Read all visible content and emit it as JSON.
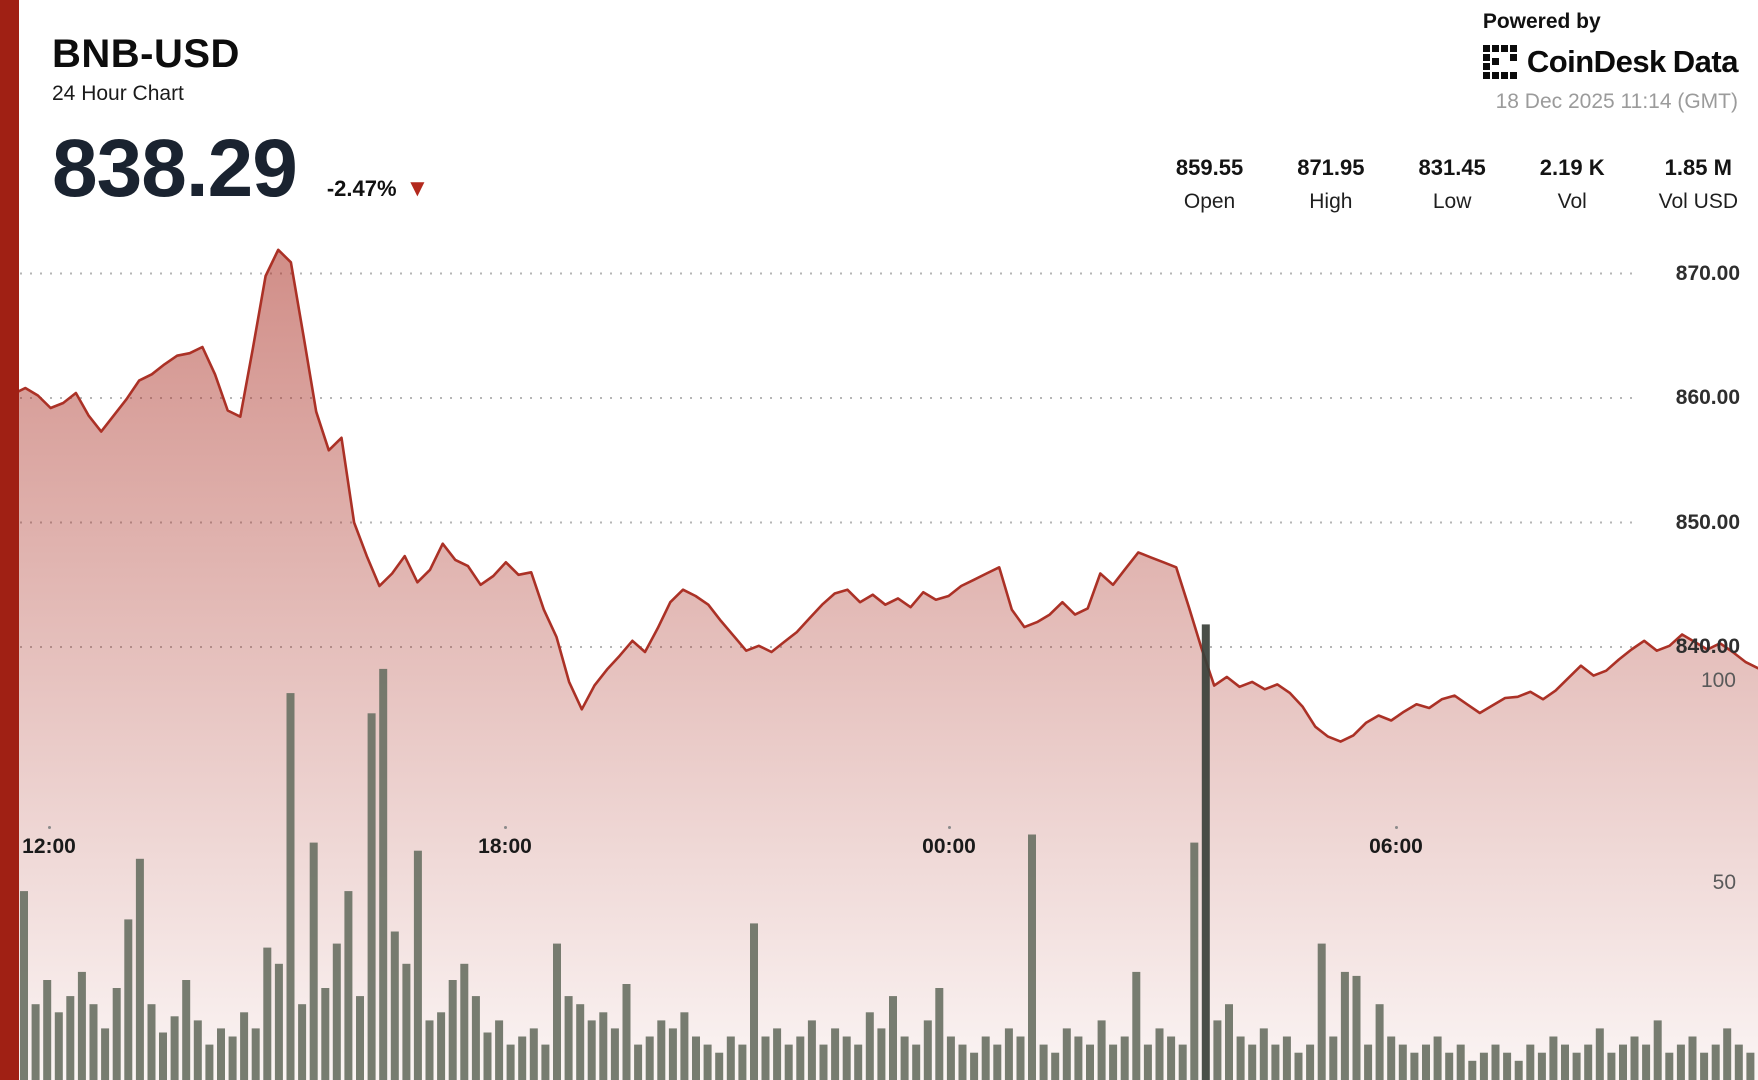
{
  "header": {
    "symbol": "BNB-USD",
    "subtitle": "24 Hour Chart",
    "price": "838.29",
    "change_pct": "-2.47%",
    "change_direction": "down",
    "powered_by": "Powered by",
    "brand_part1": "CoinDesk",
    "brand_part2": "Data",
    "timestamp": "18 Dec 2025 11:14 (GMT)"
  },
  "stats": [
    {
      "value": "859.55",
      "label": "Open"
    },
    {
      "value": "871.95",
      "label": "High"
    },
    {
      "value": "831.45",
      "label": "Low"
    },
    {
      "value": "2.19 K",
      "label": "Vol"
    },
    {
      "value": "1.85 M",
      "label": "Vol USD"
    }
  ],
  "colors": {
    "line": "#ab3126",
    "stripe": "#a02014",
    "volume": "#6b7265",
    "volume_dark": "#3a403a",
    "grid": "#b5b5b5",
    "triangle": "#b3291d"
  },
  "chart_data": {
    "type": "area",
    "title": "BNB-USD 24 Hour Chart",
    "last_price": 838.29,
    "change_pct": -2.47,
    "open": 859.55,
    "high": 871.95,
    "low": 831.45,
    "volume": "2.19 K",
    "volume_usd": "1.85 M",
    "timezone": "GMT",
    "x_axis": {
      "ticks": [
        {
          "label": "12:00",
          "pos": 0.028
        },
        {
          "label": "18:00",
          "pos": 0.287
        },
        {
          "label": "00:00",
          "pos": 0.54
        },
        {
          "label": "06:00",
          "pos": 0.794
        }
      ]
    },
    "price_axis": {
      "side": "right",
      "range": [
        828,
        874
      ],
      "ticks": [
        {
          "label": "870.00",
          "value": 870
        },
        {
          "label": "860.00",
          "value": 860
        },
        {
          "label": "850.00",
          "value": 850
        },
        {
          "label": "840.00",
          "value": 840
        }
      ]
    },
    "volume_axis": {
      "side": "right",
      "range": [
        0,
        115
      ],
      "ticks": [
        {
          "label": "100",
          "value": 100
        },
        {
          "label": "50",
          "value": 50
        }
      ]
    },
    "price_series": {
      "name": "BNB-USD price",
      "color": "#ab3126",
      "values": [
        859.5,
        860.3,
        860.8,
        860.2,
        859.2,
        859.6,
        860.4,
        858.6,
        857.3,
        858.6,
        859.9,
        861.4,
        861.9,
        862.7,
        863.4,
        863.6,
        864.1,
        861.9,
        859.0,
        858.5,
        864.0,
        869.8,
        871.9,
        870.9,
        865.0,
        858.9,
        855.8,
        856.8,
        850.0,
        847.3,
        844.9,
        845.9,
        847.3,
        845.2,
        846.2,
        848.3,
        847.0,
        846.5,
        845.0,
        845.7,
        846.8,
        845.8,
        846.0,
        843.0,
        840.8,
        837.2,
        835.0,
        836.9,
        838.2,
        839.3,
        840.5,
        839.6,
        841.5,
        843.6,
        844.6,
        844.1,
        843.4,
        842.1,
        840.9,
        839.7,
        840.1,
        839.6,
        840.4,
        841.2,
        842.3,
        843.4,
        844.3,
        844.6,
        843.6,
        844.2,
        843.4,
        843.9,
        843.2,
        844.4,
        843.8,
        844.1,
        844.9,
        845.4,
        845.9,
        846.4,
        843.0,
        841.6,
        842.0,
        842.6,
        843.6,
        842.6,
        843.1,
        845.9,
        845.0,
        846.3,
        847.6,
        847.2,
        846.8,
        846.4,
        843.2,
        839.9,
        836.9,
        837.6,
        836.8,
        837.2,
        836.6,
        837.0,
        836.3,
        835.2,
        833.6,
        832.8,
        832.4,
        832.9,
        833.9,
        834.5,
        834.1,
        834.8,
        835.4,
        835.1,
        835.8,
        836.1,
        835.4,
        834.7,
        835.3,
        835.9,
        836.0,
        836.4,
        835.8,
        836.5,
        837.5,
        838.5,
        837.7,
        838.1,
        839.0,
        839.8,
        840.5,
        839.7,
        840.1,
        841.0,
        840.4,
        839.8,
        840.3,
        839.6,
        838.8,
        838.3
      ]
    },
    "volume_series": {
      "name": "Volume",
      "color": "#6b7265",
      "highlight_color": "#3a403a",
      "highlight_index": 102,
      "values": [
        48,
        20,
        26,
        18,
        22,
        28,
        20,
        14,
        24,
        41,
        56,
        20,
        13,
        17,
        26,
        16,
        10,
        14,
        12,
        18,
        14,
        34,
        30,
        97,
        20,
        60,
        24,
        35,
        48,
        22,
        92,
        103,
        38,
        30,
        58,
        16,
        18,
        26,
        30,
        22,
        13,
        16,
        10,
        12,
        14,
        10,
        35,
        22,
        20,
        16,
        18,
        14,
        25,
        10,
        12,
        16,
        14,
        18,
        12,
        10,
        8,
        12,
        10,
        40,
        12,
        14,
        10,
        12,
        16,
        10,
        14,
        12,
        10,
        18,
        14,
        22,
        12,
        10,
        16,
        24,
        12,
        10,
        8,
        12,
        10,
        14,
        12,
        62,
        10,
        8,
        14,
        12,
        10,
        16,
        10,
        12,
        28,
        10,
        14,
        12,
        10,
        60,
        114,
        16,
        20,
        12,
        10,
        14,
        10,
        12,
        8,
        10,
        35,
        12,
        28,
        27,
        10,
        20,
        12,
        10,
        8,
        10,
        12,
        8,
        10,
        6,
        8,
        10,
        8,
        6,
        10,
        8,
        12,
        10,
        8,
        10,
        14,
        8,
        10,
        12,
        10,
        16,
        8,
        10,
        12,
        8,
        10,
        14,
        10,
        8
      ]
    }
  }
}
